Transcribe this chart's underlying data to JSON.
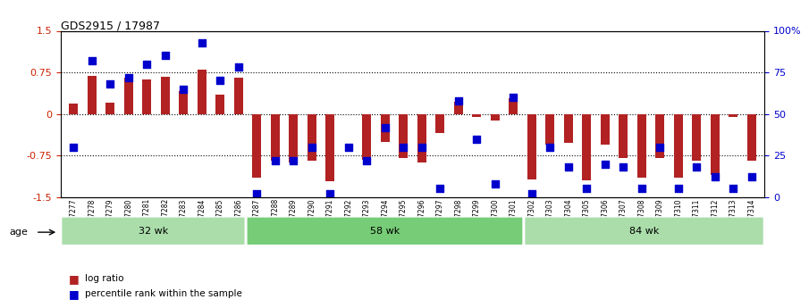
{
  "title": "GDS2915 / 17987",
  "samples": [
    "GSM97277",
    "GSM97278",
    "GSM97279",
    "GSM97280",
    "GSM97281",
    "GSM97282",
    "GSM97283",
    "GSM97284",
    "GSM97285",
    "GSM97286",
    "GSM97287",
    "GSM97288",
    "GSM97289",
    "GSM97290",
    "GSM97291",
    "GSM97292",
    "GSM97293",
    "GSM97294",
    "GSM97295",
    "GSM97296",
    "GSM97297",
    "GSM97298",
    "GSM97299",
    "GSM97300",
    "GSM97301",
    "GSM97302",
    "GSM97303",
    "GSM97304",
    "GSM97305",
    "GSM97306",
    "GSM97307",
    "GSM97308",
    "GSM97309",
    "GSM97310",
    "GSM97311",
    "GSM97312",
    "GSM97313",
    "GSM97314"
  ],
  "log_ratio": [
    0.18,
    0.68,
    0.2,
    0.65,
    0.62,
    0.67,
    0.42,
    0.8,
    0.35,
    0.65,
    -1.15,
    -0.85,
    -0.88,
    -0.85,
    -1.22,
    0.0,
    -0.82,
    -0.5,
    -0.8,
    -0.87,
    -0.35,
    0.22,
    -0.05,
    -0.12,
    0.28,
    -1.18,
    -0.55,
    -0.52,
    -1.2,
    -0.55,
    -0.8,
    -1.15,
    -0.8,
    -1.15,
    -0.85,
    -1.1,
    -0.05,
    -0.85
  ],
  "percentile": [
    30,
    82,
    68,
    72,
    80,
    85,
    65,
    93,
    70,
    78,
    2,
    22,
    22,
    30,
    2,
    30,
    22,
    42,
    30,
    30,
    5,
    58,
    35,
    8,
    60,
    2,
    30,
    18,
    5,
    20,
    18,
    5,
    30,
    5,
    18,
    12,
    5,
    12
  ],
  "groups": [
    {
      "label": "32 wk",
      "start": 0,
      "end": 10
    },
    {
      "label": "58 wk",
      "start": 10,
      "end": 25
    },
    {
      "label": "84 wk",
      "start": 25,
      "end": 38
    }
  ],
  "bar_color": "#b22222",
  "dot_color": "#0000cd",
  "ylim": [
    -1.5,
    1.5
  ],
  "yticks_left": [
    -1.5,
    -0.75,
    0,
    0.75,
    1.5
  ],
  "yticks_right": [
    0,
    25,
    50,
    75,
    100
  ],
  "ytick_right_labels": [
    "0",
    "25",
    "50",
    "75",
    "100%"
  ],
  "hlines": [
    0.75,
    0,
    -0.75
  ],
  "legend_log_ratio": "log ratio",
  "legend_percentile": "percentile rank within the sample",
  "age_label": "age",
  "group_colors": [
    "#aaddaa",
    "#77cc77",
    "#aaddaa"
  ],
  "background": "#ffffff"
}
